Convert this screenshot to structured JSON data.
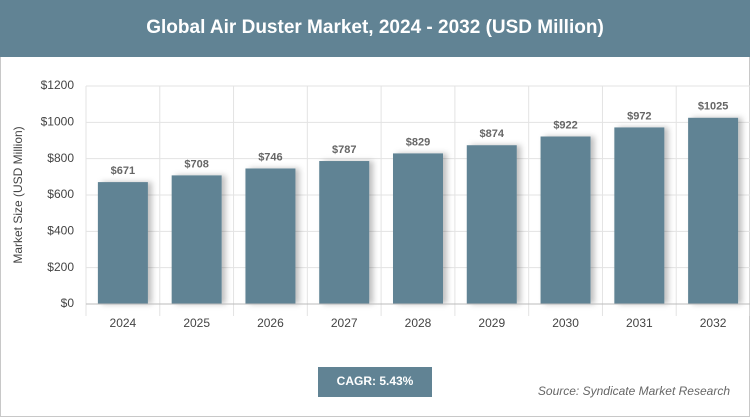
{
  "chart_data": {
    "type": "bar",
    "title": "Global Air Duster Market, 2024 - 2032 (USD Million)",
    "y_label": "Market Size (USD Million)",
    "categories": [
      "2024",
      "2025",
      "2026",
      "2027",
      "2028",
      "2029",
      "2030",
      "2031",
      "2032"
    ],
    "values": [
      671,
      708,
      746,
      787,
      829,
      874,
      922,
      972,
      1025
    ],
    "value_labels": [
      "$671",
      "$708",
      "$746",
      "$787",
      "$829",
      "$874",
      "$922",
      "$972",
      "$1025"
    ],
    "color": "#618394",
    "ylim": [
      0,
      1200
    ],
    "yticks": [
      {
        "value": 0,
        "label": "$0"
      },
      {
        "value": 200,
        "label": "$200"
      },
      {
        "value": 400,
        "label": "$400"
      },
      {
        "value": 600,
        "label": "$600"
      },
      {
        "value": 800,
        "label": "$800"
      },
      {
        "value": 1000,
        "label": "$1000"
      },
      {
        "value": 1200,
        "label": "$1200"
      }
    ],
    "grid": true,
    "cagr": "CAGR: 5.43%",
    "source": "Source: Syndicate Market Research"
  }
}
